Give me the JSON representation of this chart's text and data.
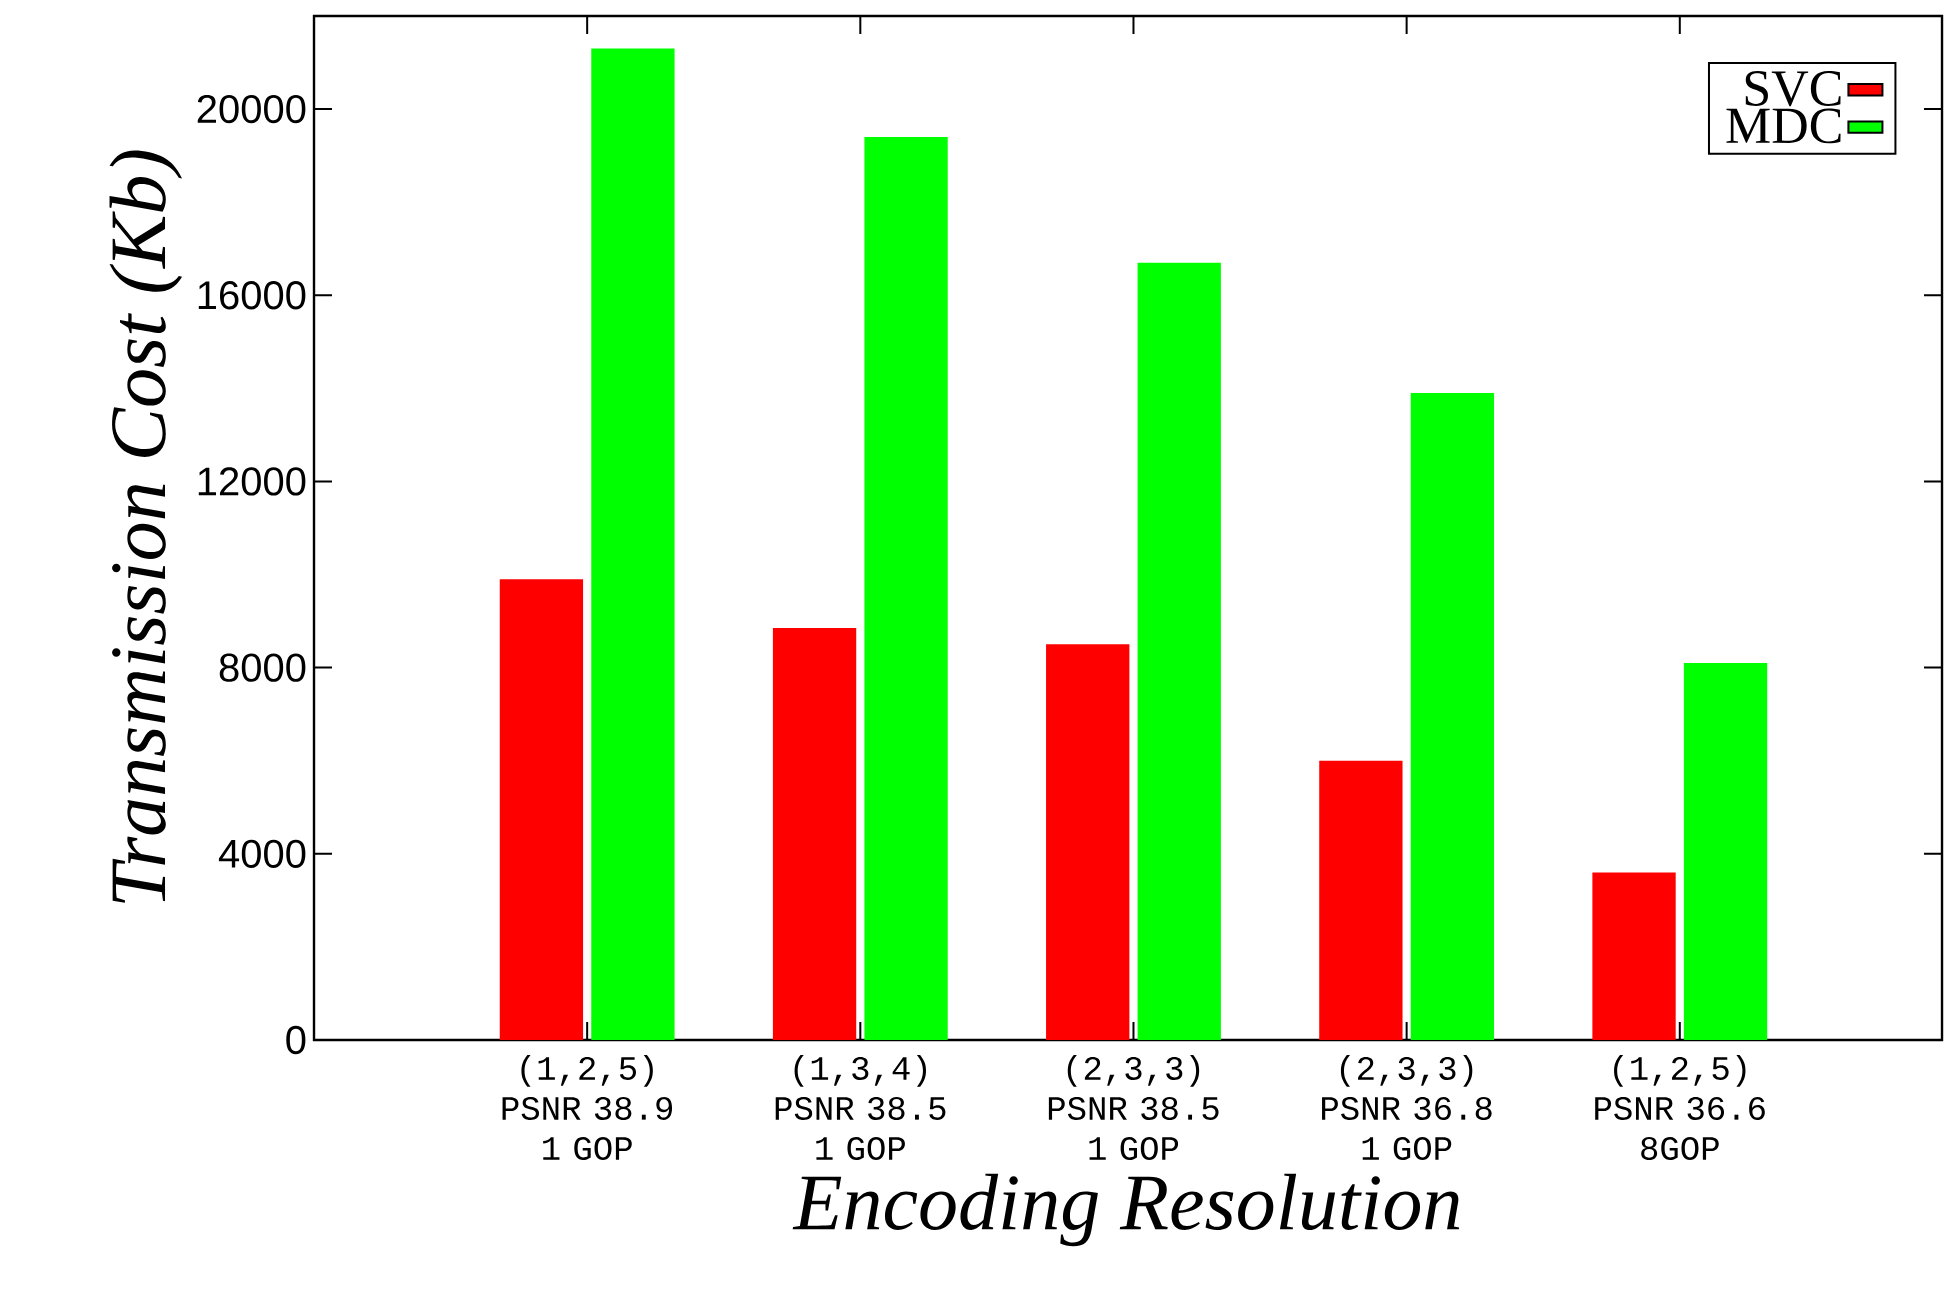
{
  "chart_data": {
    "type": "bar",
    "xlabel": "Encoding Resolution",
    "ylabel": "Transmission Cost (Kb)",
    "categories": [
      "(1,2,5) PSNR 38.9 1 GOP",
      "(1,3,4) PSNR 38.5 1 GOP",
      "(2,3,3) PSNR 38.5 1 GOP",
      "(2,3,3) PSNR 36.8 1 GOP",
      "(1,2,5) PSNR 36.6 8GOP"
    ],
    "series": [
      {
        "name": "SVC",
        "color": "#ff0000",
        "values": [
          9900,
          8850,
          8500,
          6000,
          3600
        ]
      },
      {
        "name": "MDC",
        "color": "#00ff00",
        "values": [
          21300,
          19400,
          16700,
          13900,
          8100
        ]
      }
    ],
    "ylim": [
      0,
      22000
    ],
    "yticks": [
      0,
      4000,
      8000,
      12000,
      16000,
      20000
    ],
    "legend": "top right"
  }
}
